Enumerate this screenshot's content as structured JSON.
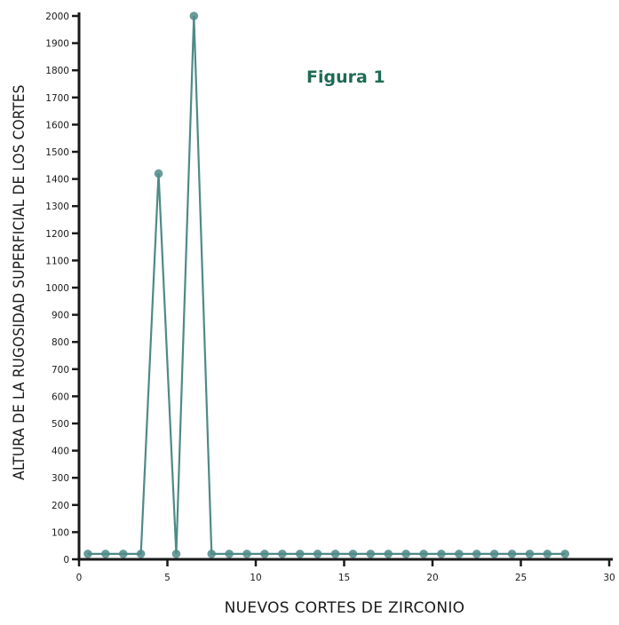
{
  "figure_label": "Figura 1",
  "chart_data": {
    "type": "line",
    "title": "",
    "xlabel": "NUEVOS CORTES DE ZIRCONIO",
    "ylabel": "ALTURA DE LA RUGOSIDAD SUPERFICIAL DE LOS CORTES",
    "xlim": [
      0,
      30
    ],
    "ylim": [
      0,
      2000
    ],
    "x_ticks": [
      0,
      5,
      10,
      15,
      20,
      25,
      30
    ],
    "y_ticks": [
      0,
      100,
      200,
      300,
      400,
      500,
      600,
      700,
      800,
      900,
      1000,
      1100,
      1200,
      1300,
      1400,
      1500,
      1600,
      1700,
      1800,
      1900,
      2000
    ],
    "grid": false,
    "series": [
      {
        "color": "#4e8a87",
        "x": [
          0.5,
          1.5,
          2.5,
          3.5,
          4.5,
          5.5,
          6.5,
          7.5,
          8.5,
          9.5,
          10.5,
          11.5,
          12.5,
          13.5,
          14.5,
          15.5,
          16.5,
          17.5,
          18.5,
          19.5,
          20.5,
          21.5,
          22.5,
          23.5,
          24.5,
          25.5,
          26.5,
          27.5
        ],
        "y": [
          20,
          20,
          20,
          20,
          1420,
          20,
          2000,
          20,
          20,
          20,
          20,
          20,
          20,
          20,
          20,
          20,
          20,
          20,
          20,
          20,
          20,
          20,
          20,
          20,
          20,
          20,
          20,
          20
        ]
      }
    ]
  }
}
